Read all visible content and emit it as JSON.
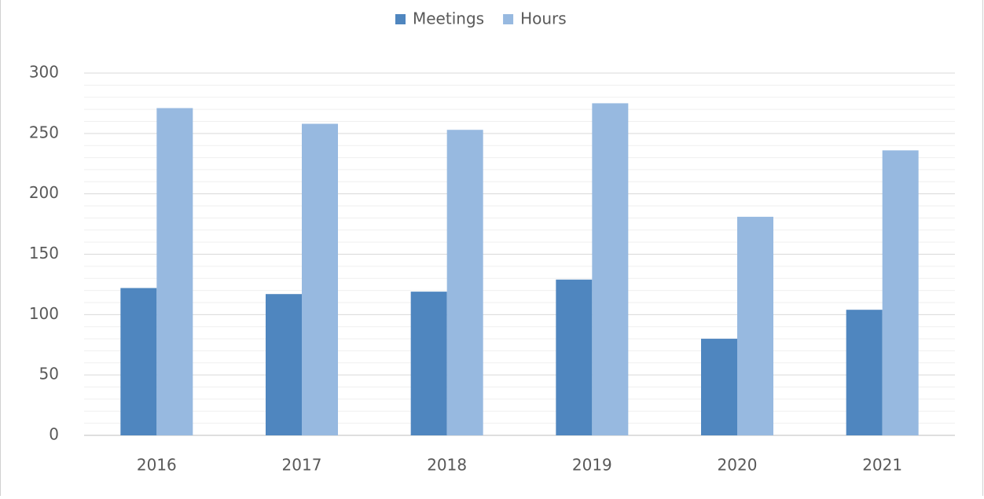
{
  "chart_data": {
    "type": "bar",
    "categories": [
      "2016",
      "2017",
      "2018",
      "2019",
      "2020",
      "2021"
    ],
    "series": [
      {
        "name": "Meetings",
        "color": "#4f86bf",
        "values": [
          122,
          117,
          119,
          129,
          80,
          104
        ]
      },
      {
        "name": "Hours",
        "color": "#97b9e0",
        "values": [
          271,
          258,
          253,
          275,
          181,
          236
        ]
      }
    ],
    "ylim": [
      0,
      300
    ],
    "yticks": [
      0,
      50,
      100,
      150,
      200,
      250,
      300
    ],
    "minor_yticks": [
      10,
      20,
      30,
      40,
      60,
      70,
      80,
      90,
      110,
      120,
      130,
      140,
      160,
      170,
      180,
      190,
      210,
      220,
      230,
      240,
      260,
      270,
      280,
      290
    ],
    "grid": true,
    "legend": "top"
  }
}
